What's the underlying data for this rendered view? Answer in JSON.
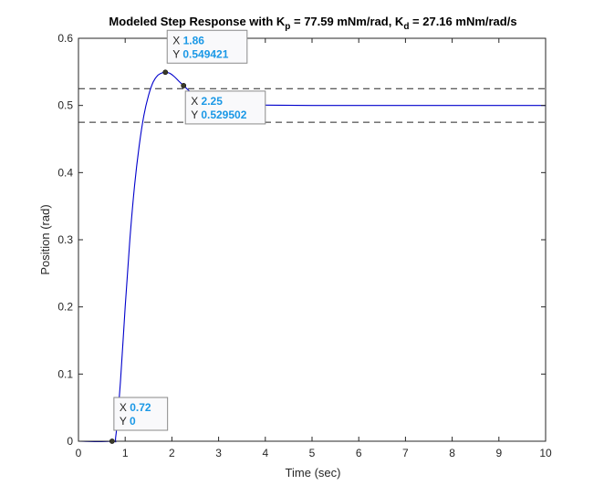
{
  "chart_data": {
    "type": "line",
    "title": {
      "prefix": "Modeled Step Response with K",
      "sub1": "p",
      "mid": " = 77.59 mNm/rad, K",
      "sub2": "d",
      "suffix": " = 27.16 mNm/rad/s"
    },
    "xlabel": "Time (sec)",
    "ylabel": "Position (rad)",
    "xlim": [
      0,
      10
    ],
    "ylim": [
      0,
      0.6
    ],
    "xticks": [
      0,
      1,
      2,
      3,
      4,
      5,
      6,
      7,
      8,
      9,
      10
    ],
    "xtick_labels": [
      "0",
      "1",
      "2",
      "3",
      "4",
      "5",
      "6",
      "7",
      "8",
      "9",
      "10"
    ],
    "yticks": [
      0,
      0.1,
      0.2,
      0.3,
      0.4,
      0.5,
      0.6
    ],
    "ytick_labels": [
      "0",
      "0.1",
      "0.2",
      "0.3",
      "0.4",
      "0.5",
      "0.6"
    ],
    "grid": false,
    "series": [
      {
        "line_color": "#0000cc",
        "x": [
          0,
          0.72,
          0.8,
          0.9,
          1.0,
          1.1,
          1.2,
          1.3,
          1.4,
          1.5,
          1.6,
          1.7,
          1.8,
          1.86,
          1.95,
          2.05,
          2.15,
          2.25,
          2.35,
          2.45,
          2.6,
          2.8,
          3.0,
          3.5,
          4.0,
          5.0,
          6.0,
          7.0,
          8.0,
          9.0,
          10.0
        ],
        "y": [
          0,
          0,
          0.008,
          0.09,
          0.2,
          0.3,
          0.38,
          0.44,
          0.485,
          0.515,
          0.535,
          0.545,
          0.5488,
          0.549421,
          0.548,
          0.543,
          0.536,
          0.529502,
          0.523,
          0.517,
          0.511,
          0.506,
          0.503,
          0.501,
          0.5005,
          0.5,
          0.5,
          0.5,
          0.5,
          0.5,
          0.5
        ]
      }
    ],
    "reference_lines": [
      {
        "y": 0.525,
        "style": "dashed",
        "color": "#262626"
      },
      {
        "y": 0.475,
        "style": "dashed",
        "color": "#262626"
      }
    ],
    "datatips": [
      {
        "x": 0.72,
        "y": 0,
        "x_text": "0.72",
        "y_text": "0"
      },
      {
        "x": 1.86,
        "y": 0.549421,
        "x_text": "1.86",
        "y_text": "0.549421"
      },
      {
        "x": 2.25,
        "y": 0.529502,
        "x_text": "2.25",
        "y_text": "0.529502"
      }
    ],
    "datatip_x_label": "X",
    "datatip_y_label": "Y"
  }
}
